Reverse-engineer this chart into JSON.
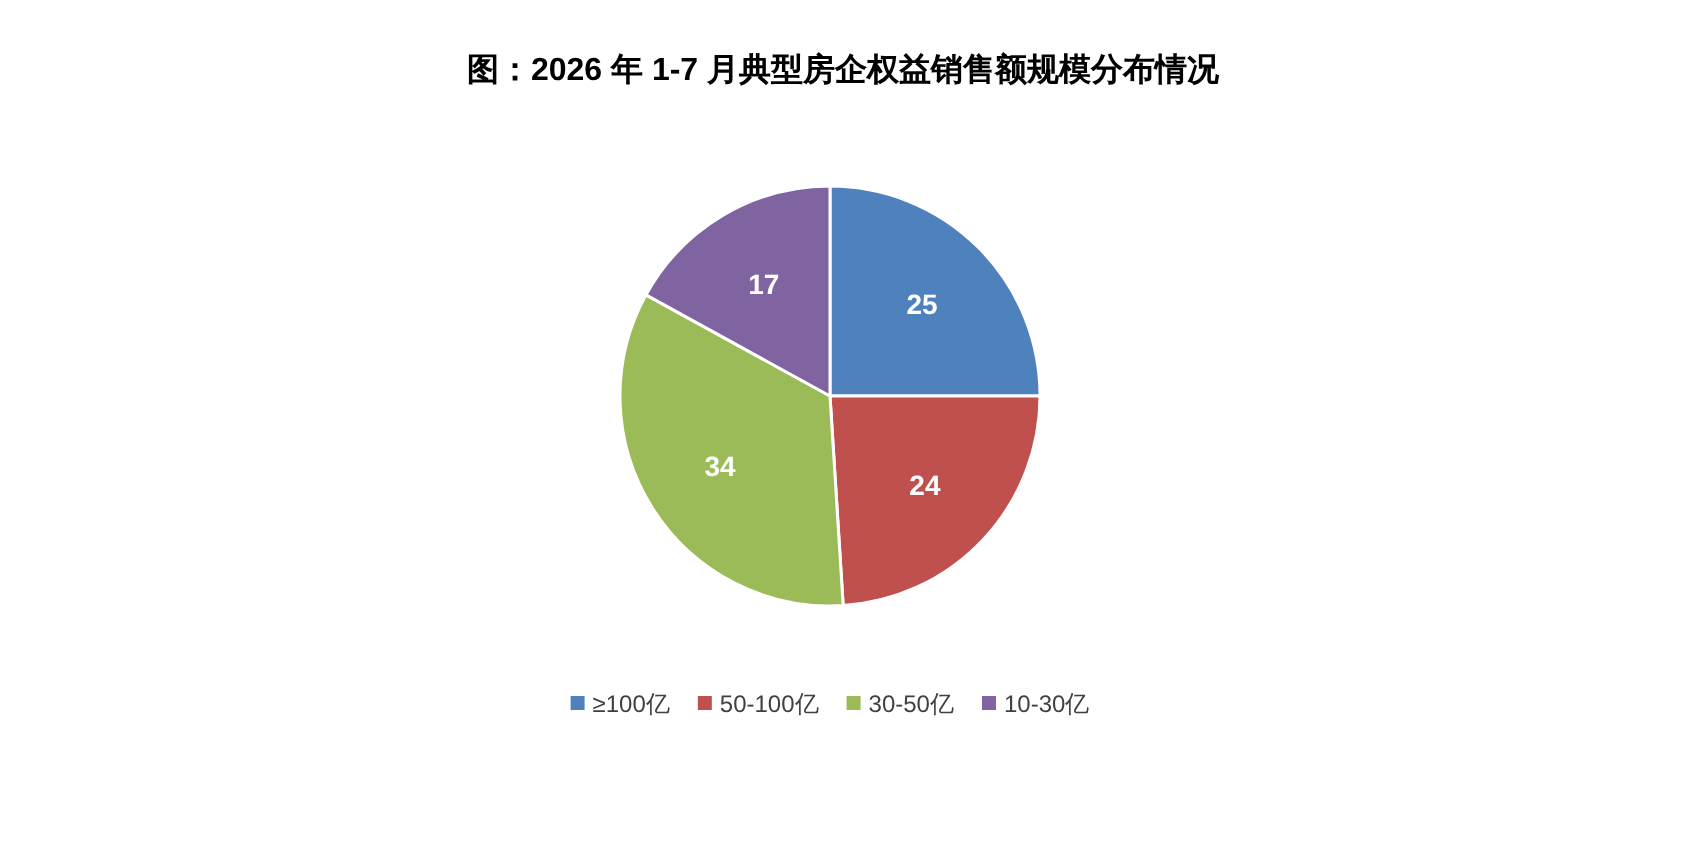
{
  "chart_data": {
    "type": "pie",
    "title": "图：2026 年 1-7 月典型房企权益销售额规模分布情况",
    "categories": [
      "≥100亿",
      "50-100亿",
      "30-50亿",
      "10-30亿"
    ],
    "values": [
      25,
      24,
      34,
      17
    ],
    "colors": [
      "#4f81bd",
      "#c0504d",
      "#9bbb59",
      "#8064a2"
    ],
    "data_labels": true,
    "legend": "bottom"
  }
}
